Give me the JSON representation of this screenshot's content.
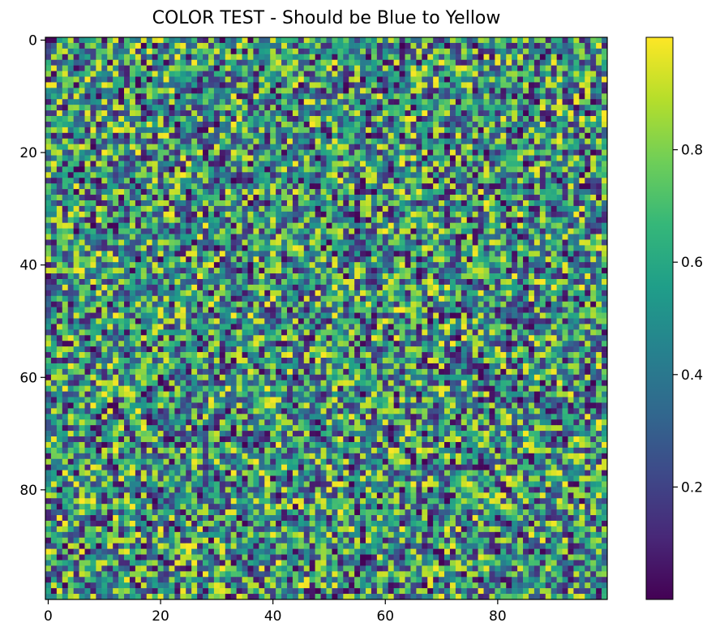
{
  "chart_data": {
    "type": "heatmap",
    "title": "COLOR TEST - Should be Blue to Yellow",
    "xlabel": "",
    "ylabel": "",
    "rows": 100,
    "cols": 100,
    "value_range": [
      0,
      1
    ],
    "values": "random uniform noise in [0, 1] (100×100)",
    "colormap": "viridis",
    "colormap_stops": [
      "#440154",
      "#482878",
      "#3e4989",
      "#31688e",
      "#26828e",
      "#1f9e89",
      "#35b779",
      "#6ece58",
      "#b5de2b",
      "#fde725"
    ],
    "x_ticks": [
      "0",
      "20",
      "40",
      "60",
      "80"
    ],
    "y_ticks": [
      "0",
      "20",
      "40",
      "60",
      "80"
    ],
    "colorbar_ticks": [
      "0.2",
      "0.4",
      "0.6",
      "0.8"
    ],
    "colorbar_tick_values": [
      0.2,
      0.4,
      0.6,
      0.8
    ],
    "tick_values": [
      0,
      20,
      40,
      60,
      80
    ],
    "colorbar_range": [
      0.0,
      1.0
    ]
  }
}
